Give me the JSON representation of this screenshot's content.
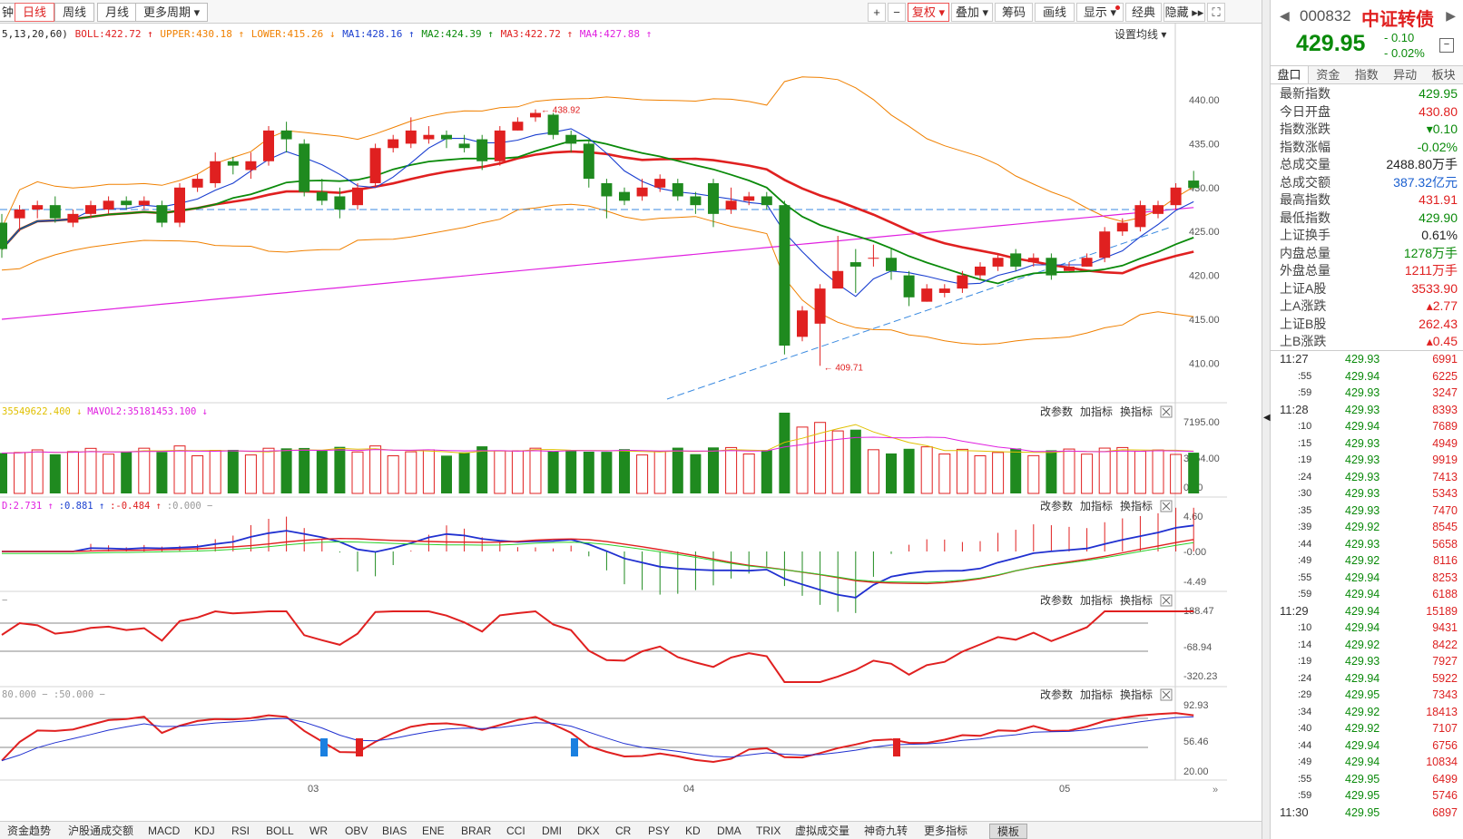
{
  "toolbar": {
    "periods": [
      "钟",
      "日线",
      "周线",
      "月线",
      "更多周期 ▾"
    ],
    "buttons": [
      "+",
      "−",
      "复权 ▾",
      "叠加 ▾",
      "筹码",
      "画线",
      "显示 ▾",
      "经典",
      "隐藏 ▸▸",
      "⛶"
    ]
  },
  "indicator_line": [
    {
      "text": "5,13,20,60)",
      "color": "#222"
    },
    {
      "text": "BOLL:422.72 ↑",
      "color": "#e02020"
    },
    {
      "text": "UPPER:430.18 ↑",
      "color": "#f08000"
    },
    {
      "text": "LOWER:415.26 ↓",
      "color": "#f08000"
    },
    {
      "text": "MA1:428.16 ↑",
      "color": "#1a3fd0"
    },
    {
      "text": "MA2:424.39 ↑",
      "color": "#0a8a0a"
    },
    {
      "text": "MA3:422.72 ↑",
      "color": "#e02020"
    },
    {
      "text": "MA4:427.88 ↑",
      "color": "#e020e0"
    }
  ],
  "ma_settings_label": "设置均线 ▾",
  "price_axis": [
    "440.00",
    "435.00",
    "430.00",
    "425.00",
    "420.00",
    "415.00",
    "410.00"
  ],
  "high_marker": "← 438.92",
  "low_marker": "← 409.71",
  "volume_panel": {
    "header": [
      {
        "text": "35549622.400 ↓",
        "color": "#e0c000"
      },
      {
        "text": "MAVOL2:35181453.100 ↓",
        "color": "#e020e0"
      }
    ],
    "axis": [
      "7195.00",
      "3554.00",
      "0.00"
    ]
  },
  "macd_panel": {
    "header": [
      {
        "text": "D:2.731 ↑",
        "color": "#e020e0"
      },
      {
        "text": ":0.881 ↑",
        "color": "#1a3fd0"
      },
      {
        "text": ":-0.484 ↑",
        "color": "#e02020"
      },
      {
        "text": ":0.000 −",
        "color": "#999"
      }
    ],
    "axis": [
      "4.60",
      "-0.00",
      "-4.49"
    ]
  },
  "cci_panel": {
    "header": [
      {
        "text": "−",
        "color": "#999"
      }
    ],
    "axis": [
      "188.47",
      "-68.94",
      "-320.23"
    ]
  },
  "kdj_panel": {
    "header": [
      {
        "text": "80.000 − :50.000 −",
        "color": "#999"
      }
    ],
    "axis": [
      "92.93",
      "56.46",
      "20.00"
    ]
  },
  "panel_buttons": [
    "改参数",
    "加指标",
    "换指标"
  ],
  "date_axis": [
    "03",
    "04",
    "05"
  ],
  "bottom_tabs": [
    "资金趋势",
    "沪股通成交额",
    "MACD",
    "KDJ",
    "RSI",
    "BOLL",
    "WR",
    "OBV",
    "BIAS",
    "ENE",
    "BRAR",
    "CCI",
    "DMI",
    "DKX",
    "CR",
    "PSY",
    "KD",
    "DMA",
    "TRIX",
    "虚拟成交量",
    "神奇九转",
    "更多指标",
    "模板"
  ],
  "sidebar": {
    "code": "000832",
    "name": "中证转债",
    "price": "429.95",
    "change": "- 0.10",
    "change_pct": "- 0.02%",
    "tabs": [
      "盘口",
      "资金",
      "指数",
      "异动",
      "板块"
    ],
    "stats": [
      {
        "label": "最新指数",
        "value": "429.95",
        "color": "green"
      },
      {
        "label": "今日开盘",
        "value": "430.80",
        "color": "red"
      },
      {
        "label": "指数涨跌",
        "value": "▾0.10",
        "color": "green"
      },
      {
        "label": "指数涨幅",
        "value": "-0.02%",
        "color": "green"
      },
      {
        "label": "总成交量",
        "value": "2488.80万手",
        "color": "black"
      },
      {
        "label": "总成交额",
        "value": "387.32亿元",
        "color": "blue"
      },
      {
        "label": "最高指数",
        "value": "431.91",
        "color": "red"
      },
      {
        "label": "最低指数",
        "value": "429.90",
        "color": "green"
      },
      {
        "label": "上证换手",
        "value": "0.61%",
        "color": "black"
      },
      {
        "label": "内盘总量",
        "value": "1278万手",
        "color": "green"
      },
      {
        "label": "外盘总量",
        "value": "1211万手",
        "color": "red"
      },
      {
        "label": "上证A股",
        "value": "3533.90",
        "color": "red"
      },
      {
        "label": "上A涨跌",
        "value": "▴2.77",
        "color": "red"
      },
      {
        "label": "上证B股",
        "value": "262.43",
        "color": "red"
      },
      {
        "label": "上B涨跌",
        "value": "▴0.45",
        "color": "red"
      }
    ],
    "ticks": [
      {
        "t": "11:27",
        "p": "429.93",
        "v": "6991"
      },
      {
        "t": ":55",
        "p": "429.94",
        "v": "6225"
      },
      {
        "t": ":59",
        "p": "429.93",
        "v": "3247"
      },
      {
        "t": "11:28",
        "p": "429.93",
        "v": "8393"
      },
      {
        "t": ":10",
        "p": "429.94",
        "v": "7689"
      },
      {
        "t": ":15",
        "p": "429.93",
        "v": "4949"
      },
      {
        "t": ":19",
        "p": "429.93",
        "v": "9919"
      },
      {
        "t": ":24",
        "p": "429.93",
        "v": "7413"
      },
      {
        "t": ":30",
        "p": "429.93",
        "v": "5343"
      },
      {
        "t": ":35",
        "p": "429.93",
        "v": "7470"
      },
      {
        "t": ":39",
        "p": "429.92",
        "v": "8545"
      },
      {
        "t": ":44",
        "p": "429.93",
        "v": "5658"
      },
      {
        "t": ":49",
        "p": "429.92",
        "v": "8116"
      },
      {
        "t": ":55",
        "p": "429.94",
        "v": "8253"
      },
      {
        "t": ":59",
        "p": "429.94",
        "v": "6188"
      },
      {
        "t": "11:29",
        "p": "429.94",
        "v": "15189"
      },
      {
        "t": ":10",
        "p": "429.94",
        "v": "9431"
      },
      {
        "t": ":14",
        "p": "429.92",
        "v": "8422"
      },
      {
        "t": ":19",
        "p": "429.93",
        "v": "7927"
      },
      {
        "t": ":24",
        "p": "429.94",
        "v": "5922"
      },
      {
        "t": ":29",
        "p": "429.95",
        "v": "7343"
      },
      {
        "t": ":34",
        "p": "429.92",
        "v": "18413"
      },
      {
        "t": ":40",
        "p": "429.92",
        "v": "7107"
      },
      {
        "t": ":44",
        "p": "429.94",
        "v": "6756"
      },
      {
        "t": ":49",
        "p": "429.94",
        "v": "10834"
      },
      {
        "t": ":55",
        "p": "429.95",
        "v": "6499"
      },
      {
        "t": ":59",
        "p": "429.95",
        "v": "5746"
      },
      {
        "t": "11:30",
        "p": "429.95",
        "v": "6897"
      }
    ]
  },
  "chart_data": {
    "type": "candlestick",
    "candles": [
      [
        426,
        423,
        427,
        422
      ],
      [
        426.5,
        427.5,
        428,
        425
      ],
      [
        427.5,
        428,
        428.5,
        426.5
      ],
      [
        428,
        426.5,
        429,
        426
      ],
      [
        426,
        427,
        427.5,
        425.5
      ],
      [
        427,
        428,
        428.5,
        426.5
      ],
      [
        427.5,
        428.5,
        429,
        427
      ],
      [
        428.5,
        428,
        429,
        427.5
      ],
      [
        428,
        428.5,
        429,
        427.5
      ],
      [
        428,
        426,
        428.5,
        425.5
      ],
      [
        426,
        430,
        430.5,
        425.5
      ],
      [
        430,
        431,
        431.5,
        429.5
      ],
      [
        430.5,
        433,
        434,
        430
      ],
      [
        433,
        432.5,
        433.5,
        431.5
      ],
      [
        432,
        433,
        434,
        431
      ],
      [
        433,
        436.5,
        437,
        432.5
      ],
      [
        436.5,
        435.5,
        437.5,
        434
      ],
      [
        435,
        429.5,
        435.5,
        429
      ],
      [
        429.5,
        428.5,
        431,
        428
      ],
      [
        429,
        427.5,
        430,
        426.5
      ],
      [
        428,
        430,
        430.5,
        427.5
      ],
      [
        430.5,
        434.5,
        435,
        430
      ],
      [
        434.5,
        435.5,
        436,
        434
      ],
      [
        435,
        436.5,
        438,
        434.5
      ],
      [
        435.5,
        436,
        437,
        435
      ],
      [
        436,
        435.5,
        436.5,
        434.5
      ],
      [
        435,
        434.5,
        436,
        434
      ],
      [
        435.5,
        433,
        436,
        432
      ],
      [
        433,
        436.5,
        437,
        432.5
      ],
      [
        436.5,
        437.5,
        438,
        436.5
      ],
      [
        438,
        438.5,
        438.9,
        437.5
      ],
      [
        438.3,
        436,
        438.5,
        435.5
      ],
      [
        436,
        435,
        436.5,
        434
      ],
      [
        435,
        431,
        435.5,
        430
      ],
      [
        430.5,
        429,
        431,
        426.5
      ],
      [
        429.5,
        428.5,
        430,
        428
      ],
      [
        429,
        430,
        431,
        428.5
      ],
      [
        430,
        431,
        431.5,
        429.5
      ],
      [
        430.5,
        429,
        431,
        428.5
      ],
      [
        429,
        428,
        429.5,
        427
      ],
      [
        430.5,
        427,
        431,
        425.5
      ],
      [
        427.5,
        428.5,
        430,
        427
      ],
      [
        428.5,
        429,
        429.5,
        428
      ],
      [
        429,
        428,
        429.5,
        427.5
      ],
      [
        428,
        412,
        428.5,
        411
      ],
      [
        413,
        416,
        416.5,
        412.5
      ],
      [
        414.5,
        418.5,
        419,
        409.7
      ],
      [
        418.5,
        420.5,
        424.5,
        420
      ],
      [
        421.5,
        421,
        423,
        418
      ],
      [
        422,
        422,
        423.5,
        421
      ],
      [
        422,
        420.5,
        423,
        419.5
      ],
      [
        420,
        417.5,
        420.5,
        416.5
      ],
      [
        417,
        418.5,
        419,
        417
      ],
      [
        418,
        418.5,
        419,
        417.5
      ],
      [
        418.5,
        420,
        420.5,
        418
      ],
      [
        420,
        421,
        421.5,
        419.5
      ],
      [
        421,
        422,
        422.5,
        420.5
      ],
      [
        422.5,
        421,
        423,
        420.5
      ],
      [
        421.5,
        422,
        422.5,
        421
      ],
      [
        422,
        420,
        422.5,
        419.5
      ],
      [
        420.5,
        421,
        421.5,
        420.5
      ],
      [
        421,
        422,
        422.5,
        421
      ],
      [
        422,
        425,
        425.5,
        421.5
      ],
      [
        425,
        426,
        426.5,
        424.5
      ],
      [
        425.5,
        428,
        428.5,
        425
      ],
      [
        427,
        428,
        428.5,
        426.5
      ],
      [
        428,
        430,
        430.5,
        427.5
      ],
      [
        430.8,
        429.95,
        431.9,
        429.9
      ]
    ],
    "ylim": [
      408,
      444
    ],
    "dates": [
      "03",
      "04",
      "05"
    ]
  }
}
